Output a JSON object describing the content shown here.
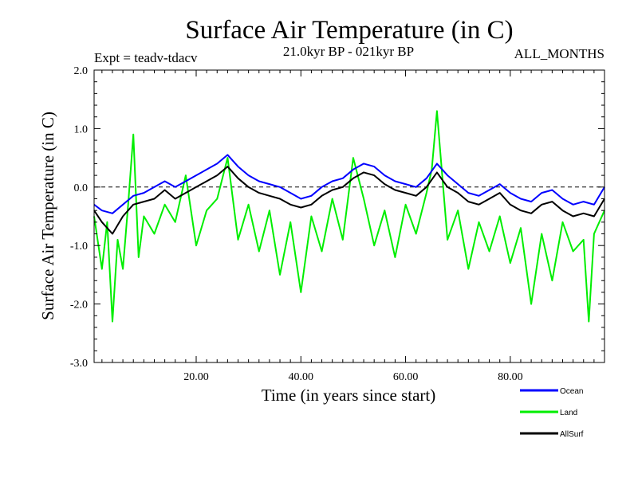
{
  "chart_data": {
    "type": "line",
    "title": "Surface Air Temperature (in C)",
    "subtitle_left": "Expt = teadv-tdacv",
    "subtitle_center": "21.0kyr BP - 021kyr BP",
    "subtitle_right": "ALL_MONTHS",
    "xlabel": "Time (in years since start)",
    "ylabel": "Surface Air Temperature (in C)",
    "xlim": [
      0.5,
      98
    ],
    "ylim": [
      -3.0,
      2.0
    ],
    "x_ticks": [
      20,
      40,
      60,
      80
    ],
    "x_tick_labels": [
      "20.00",
      "40.00",
      "60.00",
      "80.00"
    ],
    "y_ticks": [
      -3,
      -2,
      -1,
      0,
      1,
      2
    ],
    "y_tick_labels": [
      "-3.0",
      "-2.0",
      "-1.0",
      "0.0",
      "1.0",
      "2.0"
    ],
    "reference_line": 0.0,
    "legend_position": "bottom-right",
    "series": [
      {
        "name": "Ocean",
        "color": "#0000ff",
        "x": [
          0.5,
          2,
          4,
          6,
          8,
          10,
          12,
          14,
          16,
          18,
          20,
          22,
          24,
          26,
          28,
          30,
          32,
          34,
          36,
          38,
          40,
          42,
          44,
          46,
          48,
          50,
          52,
          54,
          56,
          58,
          60,
          62,
          64,
          66,
          68,
          70,
          72,
          74,
          76,
          78,
          80,
          82,
          84,
          86,
          88,
          90,
          92,
          94,
          96,
          98
        ],
        "values": [
          -0.3,
          -0.4,
          -0.45,
          -0.3,
          -0.15,
          -0.1,
          0.0,
          0.1,
          0.0,
          0.1,
          0.2,
          0.3,
          0.4,
          0.55,
          0.35,
          0.2,
          0.1,
          0.05,
          0.0,
          -0.1,
          -0.2,
          -0.15,
          0.0,
          0.1,
          0.15,
          0.3,
          0.4,
          0.35,
          0.2,
          0.1,
          0.05,
          0.0,
          0.15,
          0.4,
          0.2,
          0.05,
          -0.1,
          -0.15,
          -0.05,
          0.05,
          -0.1,
          -0.2,
          -0.25,
          -0.1,
          -0.05,
          -0.2,
          -0.3,
          -0.25,
          -0.3,
          0.0
        ]
      },
      {
        "name": "Land",
        "color": "#00ee00",
        "x": [
          0.5,
          2,
          3,
          4,
          5,
          6,
          7,
          8,
          9,
          10,
          12,
          14,
          16,
          18,
          20,
          22,
          24,
          26,
          28,
          30,
          32,
          34,
          36,
          38,
          40,
          42,
          44,
          46,
          48,
          50,
          52,
          54,
          56,
          58,
          60,
          62,
          64,
          65,
          66,
          68,
          70,
          72,
          74,
          76,
          78,
          80,
          82,
          84,
          86,
          88,
          90,
          92,
          94,
          95,
          96,
          98
        ],
        "values": [
          -0.5,
          -1.4,
          -0.6,
          -2.3,
          -0.9,
          -1.4,
          -0.3,
          0.9,
          -1.2,
          -0.5,
          -0.8,
          -0.3,
          -0.6,
          0.2,
          -1.0,
          -0.4,
          -0.2,
          0.5,
          -0.9,
          -0.3,
          -1.1,
          -0.4,
          -1.5,
          -0.6,
          -1.8,
          -0.5,
          -1.1,
          -0.2,
          -0.9,
          0.5,
          -0.2,
          -1.0,
          -0.4,
          -1.2,
          -0.3,
          -0.8,
          -0.1,
          0.3,
          1.3,
          -0.9,
          -0.4,
          -1.4,
          -0.6,
          -1.1,
          -0.5,
          -1.3,
          -0.7,
          -2.0,
          -0.8,
          -1.6,
          -0.6,
          -1.1,
          -0.9,
          -2.3,
          -0.8,
          -0.4
        ]
      },
      {
        "name": "AllSurf",
        "color": "#000000",
        "x": [
          0.5,
          2,
          4,
          6,
          8,
          10,
          12,
          14,
          16,
          18,
          20,
          22,
          24,
          26,
          28,
          30,
          32,
          34,
          36,
          38,
          40,
          42,
          44,
          46,
          48,
          50,
          52,
          54,
          56,
          58,
          60,
          62,
          64,
          66,
          68,
          70,
          72,
          74,
          76,
          78,
          80,
          82,
          84,
          86,
          88,
          90,
          92,
          94,
          96,
          98
        ],
        "values": [
          -0.4,
          -0.6,
          -0.8,
          -0.5,
          -0.3,
          -0.25,
          -0.2,
          -0.05,
          -0.2,
          -0.1,
          0.0,
          0.1,
          0.2,
          0.35,
          0.15,
          0.0,
          -0.1,
          -0.15,
          -0.2,
          -0.3,
          -0.35,
          -0.3,
          -0.15,
          -0.05,
          0.0,
          0.15,
          0.25,
          0.2,
          0.05,
          -0.05,
          -0.1,
          -0.15,
          0.0,
          0.25,
          0.0,
          -0.1,
          -0.25,
          -0.3,
          -0.2,
          -0.1,
          -0.3,
          -0.4,
          -0.45,
          -0.3,
          -0.25,
          -0.4,
          -0.5,
          -0.45,
          -0.5,
          -0.2
        ]
      }
    ]
  }
}
